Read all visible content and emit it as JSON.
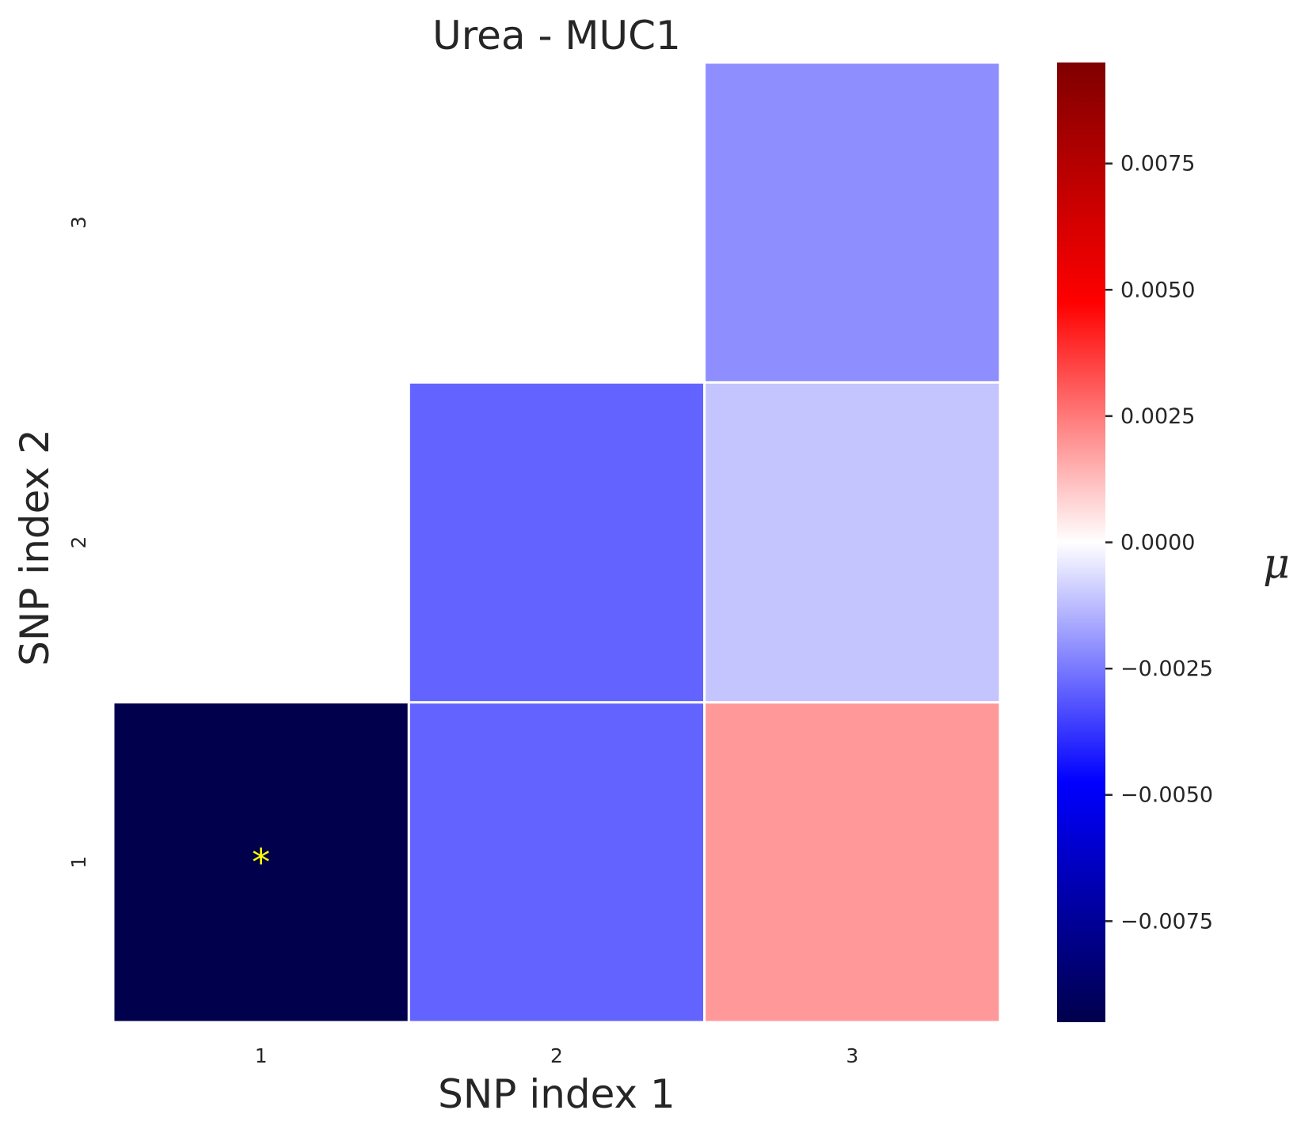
{
  "chart_data": {
    "type": "heatmap",
    "title": "Urea - MUC1",
    "xlabel": "SNP index 1",
    "ylabel": "SNP index 2",
    "x_categories": [
      "1",
      "2",
      "3"
    ],
    "y_categories": [
      "1",
      "2",
      "3"
    ],
    "cells": [
      {
        "x": "1",
        "y": "1",
        "value": -0.0095,
        "annotation": "*"
      },
      {
        "x": "2",
        "y": "1",
        "value": -0.0029,
        "annotation": ""
      },
      {
        "x": "3",
        "y": "1",
        "value": 0.0019,
        "annotation": ""
      },
      {
        "x": "2",
        "y": "2",
        "value": -0.0029,
        "annotation": ""
      },
      {
        "x": "3",
        "y": "2",
        "value": -0.0011,
        "annotation": ""
      },
      {
        "x": "3",
        "y": "3",
        "value": -0.0021,
        "annotation": ""
      }
    ],
    "colorbar": {
      "label": "μ",
      "colormap": "seismic",
      "vmin": -0.0095,
      "vmax": 0.0095,
      "ticks": [
        0.0075,
        0.005,
        0.0025,
        0.0,
        -0.0025,
        -0.005,
        -0.0075
      ],
      "tick_labels": [
        "0.0075",
        "0.0050",
        "0.0025",
        "0.0000",
        "−0.0025",
        "−0.0050",
        "−0.0075"
      ]
    },
    "annotation_color": "#ffff00",
    "grid": false
  }
}
